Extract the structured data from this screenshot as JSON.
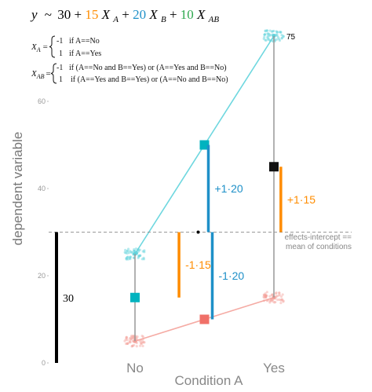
{
  "chart_data": {
    "type": "scatter",
    "equation": {
      "y": "y",
      "tilde": "~",
      "intercept": "30",
      "plus": "+",
      "terms": [
        {
          "coef": "15",
          "var": "X",
          "sub": "A",
          "color": "#ff8c00"
        },
        {
          "coef": "20",
          "var": "X",
          "sub": "B",
          "color": "#1e90c8"
        },
        {
          "coef": "10",
          "var": "X",
          "sub": "AB",
          "color": "#2fa84f"
        }
      ]
    },
    "coding": {
      "xa": {
        "label": "X",
        "sub": "A",
        "eq": "=",
        "rows": [
          {
            "val": "-1",
            "text": "if A==No"
          },
          {
            "val": "1",
            "text": "if A==Yes"
          }
        ]
      },
      "xab": {
        "label": "X",
        "sub": "AB",
        "eq": "=",
        "rows": [
          {
            "val": "-1",
            "text": "if (A==No and B==Yes) or (A==Yes and B==No)"
          },
          {
            "val": "1",
            "text": "if (A==Yes and B==Yes) or (A==No and B==No)"
          }
        ]
      }
    },
    "xlabel": "Condition A",
    "ylabel": "dependent variable",
    "categories": [
      "No",
      "Yes"
    ],
    "ylim": [
      0,
      75
    ],
    "yticks": [
      "0",
      "20",
      "40",
      "60"
    ],
    "grid": false,
    "series": [
      {
        "color": "#5fd3dc",
        "values": [
          25,
          75
        ]
      },
      {
        "color": "#f4a29b",
        "values": [
          5,
          15
        ]
      }
    ],
    "level_means": [
      {
        "color": "#00b3bf",
        "x": 0,
        "y": 15
      },
      {
        "color": "#00b3bf",
        "x": 0.5,
        "y": 50
      },
      {
        "color": "#f07068",
        "x": 0.5,
        "y": 10
      },
      {
        "color": "#111111",
        "x": 1,
        "y": 45
      }
    ],
    "intercept_value": 30,
    "intercept_bar_label": "30",
    "effect_bars": [
      {
        "label": "-1·15",
        "x": 0.17,
        "y0": 15,
        "y1": 30,
        "color": "#ff8c00"
      },
      {
        "label": "+1·20",
        "x": 0.5,
        "y0": 30,
        "y1": 50,
        "color": "#1e90c8"
      },
      {
        "label": "-1·20",
        "x": 0.5,
        "y0": 10,
        "y1": 30,
        "color": "#1e90c8"
      },
      {
        "label": "+1·15",
        "x": 1.05,
        "y0": 30,
        "y1": 45,
        "color": "#ff8c00"
      }
    ],
    "intercept_annotation": [
      "effects-intercept ==",
      "mean of conditions"
    ],
    "point_label": "75"
  }
}
